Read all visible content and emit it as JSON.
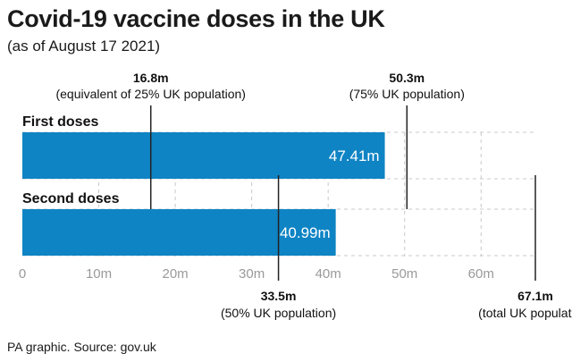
{
  "header": {
    "title": "Covid-19 vaccine doses in the UK",
    "subtitle": "(as of August 17 2021)"
  },
  "footer": {
    "source": "PA graphic. Source: gov.uk"
  },
  "colors": {
    "bar": "#0f84c4",
    "grid": "#c8c8c8",
    "ref": "#222222",
    "tick": "#9a9a9a"
  },
  "chart_data": {
    "type": "bar",
    "orientation": "horizontal",
    "title": "Covid-19 vaccine doses in the UK",
    "subtitle": "(as of August 17 2021)",
    "categories": [
      "First doses",
      "Second doses"
    ],
    "values": [
      47.41,
      40.99
    ],
    "value_labels": [
      "47.41m",
      "40.99m"
    ],
    "x_ticks": [
      0,
      10,
      20,
      30,
      40,
      50,
      60
    ],
    "x_tick_labels": [
      "0",
      "10m",
      "20m",
      "30m",
      "40m",
      "50m",
      "60m"
    ],
    "xlim": [
      0,
      67.1
    ],
    "grid": true,
    "reference_lines": [
      {
        "value": 16.8,
        "value_label": "16.8m",
        "label": "(equivalent of 25% UK population)",
        "position": "top"
      },
      {
        "value": 50.3,
        "value_label": "50.3m",
        "label": "(75% UK population)",
        "position": "top"
      },
      {
        "value": 33.5,
        "value_label": "33.5m",
        "label": "(50% UK population)",
        "position": "bottom"
      },
      {
        "value": 67.1,
        "value_label": "67.1m",
        "label": "(total UK population)",
        "position": "bottom"
      }
    ]
  }
}
